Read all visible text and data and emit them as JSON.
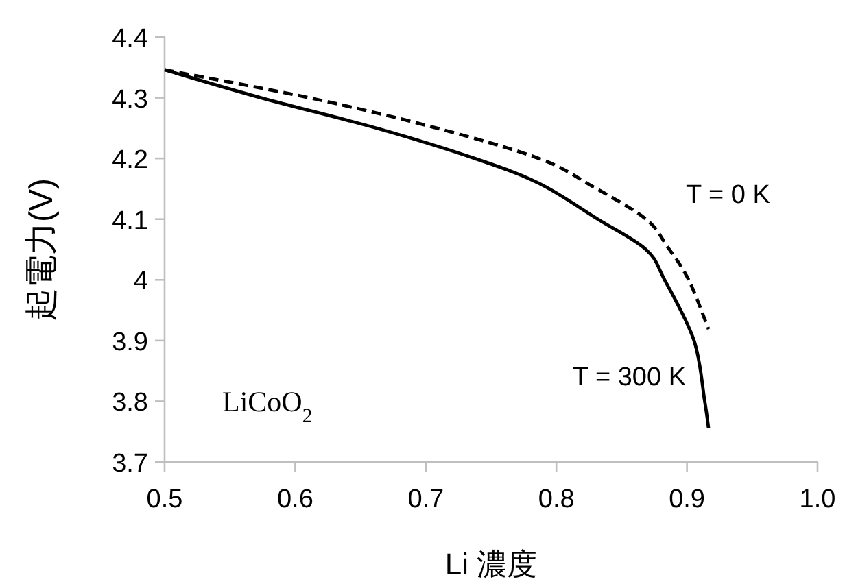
{
  "chart_data": {
    "type": "line",
    "xlabel": "Li 濃度",
    "ylabel": "起電力(V)",
    "xlim": [
      0.5,
      1.0
    ],
    "ylim": [
      3.7,
      4.4
    ],
    "xticks": [
      0.5,
      0.6,
      0.7,
      0.8,
      0.9,
      {
        "value": 1.0,
        "label": "1.0"
      }
    ],
    "yticks": [
      3.7,
      3.8,
      3.9,
      4,
      4.1,
      4.2,
      4.3,
      4.4
    ],
    "grid": false,
    "legend": false,
    "marker": "none",
    "annotations": [
      "LiCoO$_{2}$"
    ],
    "series": [
      {
        "name": "T = 0 K",
        "color": "#000000",
        "line_style": "dashed",
        "x": [
          0.5,
          0.6106,
          0.7048,
          0.7866,
          0.8276,
          0.8686,
          0.8849,
          0.9013,
          0.9165
        ],
        "values": [
          4.346,
          4.3,
          4.252,
          4.2,
          4.154,
          4.1,
          4.055,
          4.0,
          3.919
        ]
      },
      {
        "name": "T = 300 K",
        "color": "#000000",
        "line_style": "solid",
        "x": [
          0.5,
          0.5737,
          0.6638,
          0.7375,
          0.7866,
          0.8317,
          0.8686,
          0.8829,
          0.9054,
          0.9136,
          0.9165
        ],
        "values": [
          4.346,
          4.3,
          4.249,
          4.2,
          4.159,
          4.1,
          4.05,
          4.0,
          3.9,
          3.8,
          3.756
        ]
      }
    ]
  }
}
